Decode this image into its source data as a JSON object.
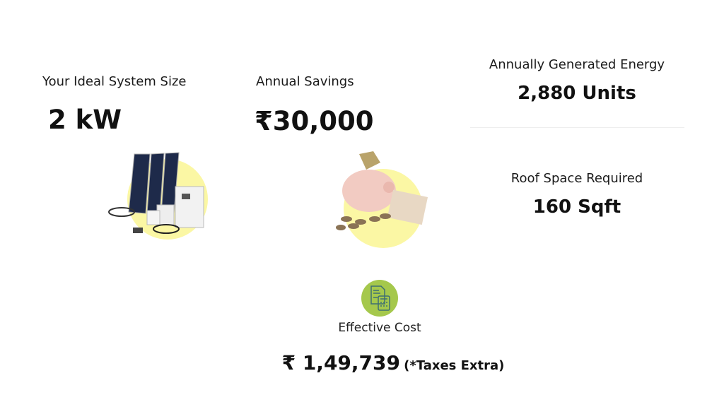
{
  "system_size": {
    "label": "Your Ideal System Size",
    "value": "2 kW"
  },
  "savings": {
    "label": "Annual Savings",
    "value": "₹30,000"
  },
  "energy": {
    "label": "Annually Generated Energy",
    "value": "2,880 Units"
  },
  "roof": {
    "label": "Roof Space Required",
    "value": "160 Sqft"
  },
  "cost": {
    "label": "Effective Cost",
    "value": "₹ 1,49,739",
    "note": "(*Taxes Extra)"
  },
  "colors": {
    "accent_yellow": "#fbf7a4",
    "icon_green": "#a5c84c",
    "icon_stroke": "#3e6f73"
  },
  "icons": {
    "cost": "invoice-calculator-icon",
    "system": "solar-kit-image",
    "savings": "piggy-bank-image"
  }
}
